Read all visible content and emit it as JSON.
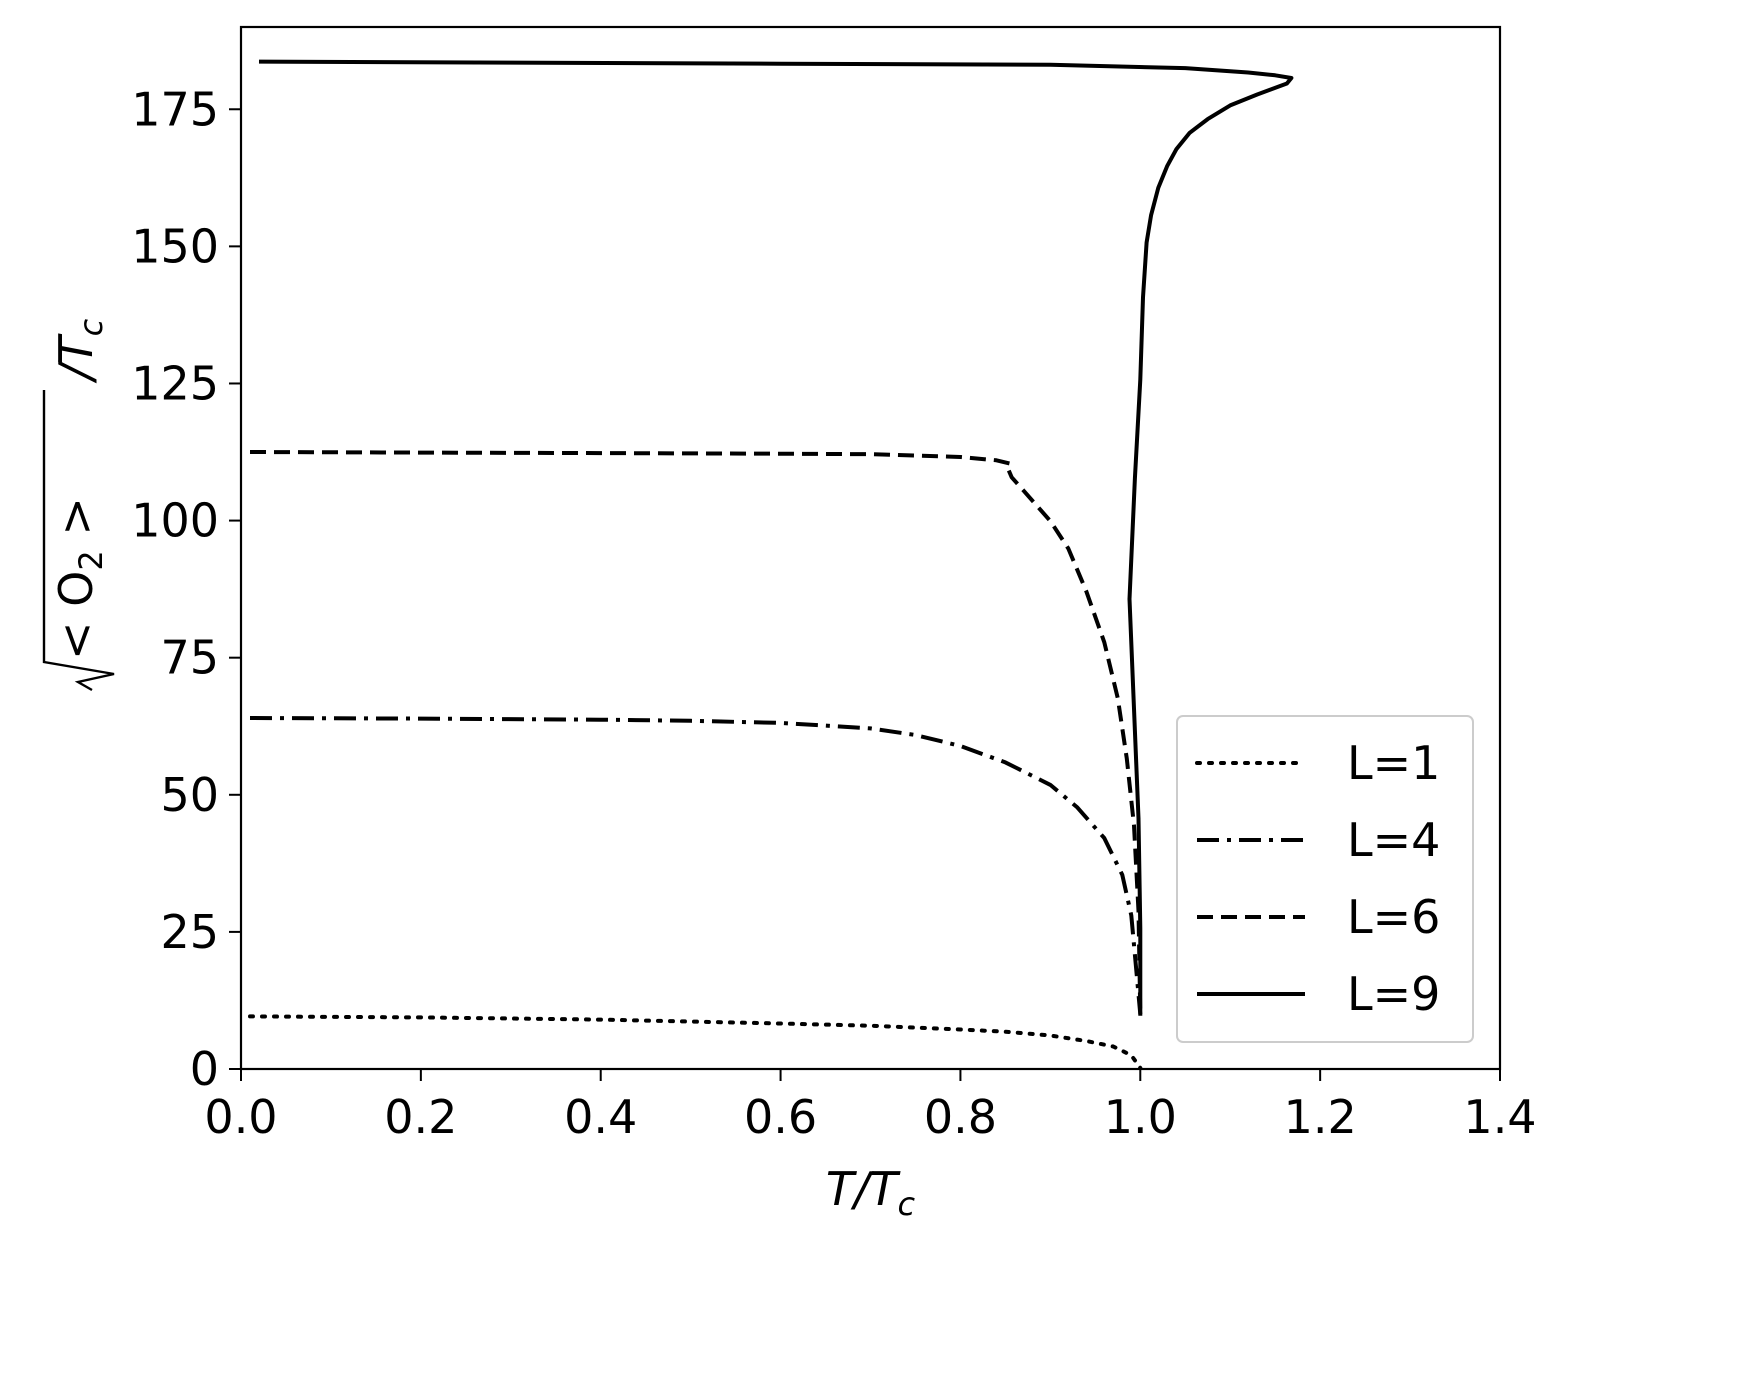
{
  "chart_data": {
    "type": "line",
    "title": "",
    "xlabel": "T/T",
    "xlabel_sub": "c",
    "ylabel": "/T",
    "ylabel_sub": "c",
    "ylabel_root": "< O",
    "ylabel_root_sub": "2",
    "ylabel_root_end": " >",
    "xlim": [
      0.0,
      1.4
    ],
    "ylim": [
      0,
      190
    ],
    "xticks": [
      0.0,
      0.2,
      0.4,
      0.6,
      0.8,
      1.0,
      1.2,
      1.4
    ],
    "xtick_labels": [
      "0.0",
      "0.2",
      "0.4",
      "0.6",
      "0.8",
      "1.0",
      "1.2",
      "1.4"
    ],
    "yticks": [
      0,
      25,
      50,
      75,
      100,
      125,
      150,
      175
    ],
    "ytick_labels": [
      "0",
      "25",
      "50",
      "75",
      "100",
      "125",
      "150",
      "175"
    ],
    "grid": false,
    "legend_position": "lower-right",
    "series": [
      {
        "name": "L=1",
        "style": "dotted",
        "color": "#000000",
        "x": [
          0.01,
          0.2,
          0.4,
          0.6,
          0.7,
          0.8,
          0.85,
          0.9,
          0.94,
          0.97,
          0.99,
          1.0
        ],
        "y": [
          9.6,
          9.4,
          9.0,
          8.3,
          7.9,
          7.2,
          6.8,
          6.1,
          5.1,
          4.1,
          2.5,
          0.2
        ]
      },
      {
        "name": "L=4",
        "style": "dashdot",
        "color": "#000000",
        "x": [
          0.01,
          0.2,
          0.4,
          0.5,
          0.6,
          0.7,
          0.75,
          0.8,
          0.85,
          0.9,
          0.93,
          0.96,
          0.98,
          0.99,
          1.0
        ],
        "y": [
          64,
          63.9,
          63.7,
          63.5,
          63.1,
          62.1,
          60.9,
          58.9,
          55.9,
          51.8,
          47.7,
          42.1,
          35.4,
          28,
          10
        ]
      },
      {
        "name": "L=6",
        "style": "dashed",
        "color": "#000000",
        "x": [
          0.01,
          0.2,
          0.4,
          0.6,
          0.7,
          0.8,
          0.84,
          0.855,
          0.853,
          0.857,
          0.87,
          0.9,
          0.92,
          0.94,
          0.96,
          0.975,
          0.985,
          0.993,
          0.998,
          1.0
        ],
        "y": [
          112.5,
          112.4,
          112.3,
          112.2,
          112.1,
          111.6,
          111,
          110.4,
          109.4,
          107.9,
          105.5,
          99.9,
          94.9,
          87.1,
          77.8,
          67.6,
          56.6,
          44.4,
          28.8,
          10
        ]
      },
      {
        "name": "L=9",
        "style": "solid",
        "color": "#000000",
        "x": [
          0.02,
          0.3,
          0.6,
          0.9,
          1.05,
          1.12,
          1.15,
          1.168,
          1.163,
          1.13,
          1.1,
          1.075,
          1.055,
          1.04,
          1.03,
          1.02,
          1.012,
          1.007,
          1.005,
          1.003,
          1.0,
          0.994,
          0.988,
          0.993,
          0.998,
          1.0,
          1.0
        ],
        "y": [
          183.7,
          183.5,
          183.3,
          183.1,
          182.5,
          181.7,
          181.2,
          180.7,
          179.7,
          177.7,
          175.7,
          173.2,
          170.7,
          167.7,
          164.7,
          160.7,
          155.7,
          150.7,
          145.7,
          140.7,
          125.7,
          107.7,
          85.7,
          65.7,
          45.7,
          25.7,
          9.7
        ]
      }
    ]
  }
}
